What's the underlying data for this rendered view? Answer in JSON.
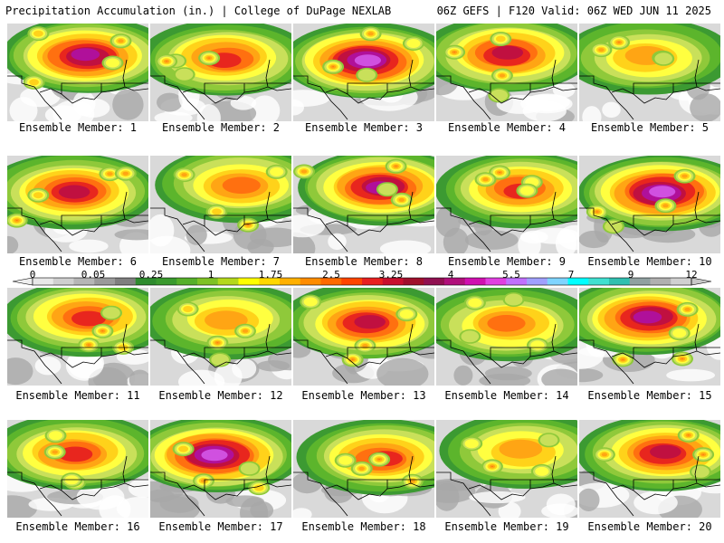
{
  "header": {
    "left": "Precipitation Accumulation (in.) | College of DuPage NEXLAB",
    "right": "06Z GEFS | F120 Valid: 06Z WED JUN 11 2025"
  },
  "label_prefix": "Ensemble Member: ",
  "members": [
    1,
    2,
    3,
    4,
    5,
    6,
    7,
    8,
    9,
    10,
    11,
    12,
    13,
    14,
    15,
    16,
    17,
    18,
    19,
    20
  ],
  "colorbar": {
    "tick_labels": [
      "0",
      "0.05",
      "0.25",
      "1",
      "1.75",
      "2.5",
      "3.25",
      "4",
      "5.5",
      "7",
      "9",
      "12"
    ],
    "colors": [
      "#e8e8e8",
      "#cfcfcf",
      "#b6b6b6",
      "#9a9a9a",
      "#7f7f7f",
      "#2e8b2e",
      "#3a9a2e",
      "#56b02a",
      "#7ec224",
      "#b4d81c",
      "#ffff00",
      "#ffd700",
      "#ffb000",
      "#ff8c00",
      "#ff6a00",
      "#ff4500",
      "#e82020",
      "#c8102e",
      "#a0102c",
      "#901050",
      "#b0107a",
      "#d010b0",
      "#e040e0",
      "#c070ff",
      "#a0a0ff",
      "#7fd4ff",
      "#00ffff",
      "#40e0d0",
      "#30c0b0",
      "#90a0a0",
      "#b0b0b0",
      "#d0d0d0"
    ]
  }
}
